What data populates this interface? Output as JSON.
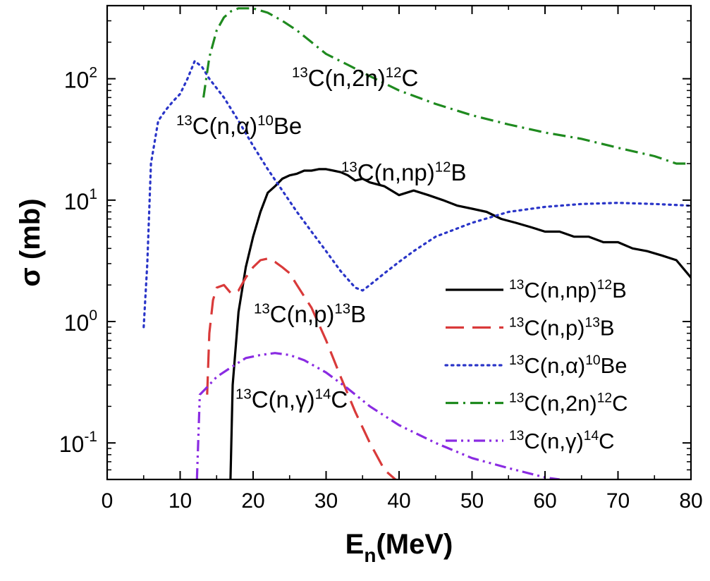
{
  "chart_data": {
    "type": "line",
    "title": "",
    "xlabel": "E",
    "xlabel_subscript": "n",
    "xlabel_unit": "(MeV)",
    "ylabel": "σ (mb)",
    "xlim": [
      0,
      80
    ],
    "ylim": [
      0.05,
      400
    ],
    "yscale": "log",
    "xticks": [
      "0",
      "10",
      "20",
      "30",
      "40",
      "50",
      "60",
      "70",
      "80"
    ],
    "yticks": [
      {
        "value": 0.1,
        "base": "10",
        "exp": "-1"
      },
      {
        "value": 1,
        "base": "10",
        "exp": "0"
      },
      {
        "value": 10,
        "base": "10",
        "exp": "1"
      },
      {
        "value": 100,
        "base": "10",
        "exp": "2"
      }
    ],
    "grid": false,
    "legend_position": "bottom-right",
    "series": [
      {
        "key": "np",
        "name": {
          "pre": "13",
          "mid": "C(n,np)",
          "post_sup": "12",
          "post": "B"
        },
        "color": "#000000",
        "dash": "solid",
        "x": [
          16.9,
          17.2,
          18,
          19,
          20,
          21,
          22,
          23,
          24,
          25,
          26,
          27,
          28,
          29,
          30,
          31,
          32,
          33,
          34,
          35,
          36,
          38,
          40,
          42,
          44,
          46,
          48,
          50,
          52,
          54,
          56,
          58,
          60,
          62,
          64,
          66,
          68,
          70,
          72,
          74,
          76,
          78,
          80
        ],
        "y": [
          0.05,
          0.3,
          1.2,
          2.8,
          5,
          8,
          11.5,
          13,
          15,
          16,
          16.5,
          17.5,
          17.5,
          18,
          18,
          17.5,
          17,
          16,
          14.5,
          15,
          14,
          13,
          11,
          12,
          11,
          10,
          9,
          8.5,
          8,
          7,
          6.5,
          6,
          5.5,
          5.5,
          5,
          5,
          4.5,
          4.5,
          4,
          3.8,
          3.5,
          3.2,
          2.3
        ]
      },
      {
        "key": "p",
        "name": {
          "pre": "13",
          "mid": "C(n,p)",
          "post_sup": "13",
          "post": "B"
        },
        "color": "#d93a3a",
        "dash": "dashed",
        "x": [
          13.7,
          14,
          14.5,
          15,
          16,
          17,
          18,
          19,
          20,
          21,
          22,
          23,
          24,
          25,
          26,
          28,
          30,
          32,
          34,
          36,
          38,
          39.5
        ],
        "y": [
          0.25,
          0.8,
          1.5,
          1.9,
          2.0,
          1.7,
          1.8,
          2.3,
          2.8,
          3.2,
          3.3,
          3.1,
          2.8,
          2.5,
          2.0,
          1.3,
          0.7,
          0.35,
          0.18,
          0.1,
          0.06,
          0.05
        ]
      },
      {
        "key": "alpha",
        "name": {
          "pre": "13",
          "mid": "C(n,α)",
          "post_sup": "10",
          "post": "Be"
        },
        "color": "#2a35c8",
        "dash": "dotted",
        "x": [
          5,
          5.5,
          6,
          7,
          8,
          9,
          10,
          11,
          12,
          13,
          14,
          16,
          18,
          20,
          22,
          24,
          26,
          28,
          30,
          32,
          34,
          35,
          36,
          38,
          40,
          42,
          45,
          50,
          55,
          60,
          65,
          70,
          75,
          80
        ],
        "y": [
          0.9,
          3,
          20,
          45,
          55,
          65,
          75,
          100,
          140,
          125,
          100,
          70,
          45,
          28,
          18,
          12,
          8,
          5.5,
          3.8,
          2.6,
          1.9,
          1.8,
          2.0,
          2.5,
          3.1,
          3.8,
          5,
          6.5,
          8,
          8.8,
          9.3,
          9.5,
          9.3,
          9.0
        ]
      },
      {
        "key": "2n",
        "name": {
          "pre": "13",
          "mid": "C(n,2n)",
          "post_sup": "12",
          "post": "C"
        },
        "color": "#1f8a1f",
        "dash": "dashdot",
        "x": [
          13.2,
          14,
          15,
          16,
          17,
          18,
          20,
          22,
          24,
          26,
          28,
          30,
          33,
          36,
          40,
          45,
          50,
          55,
          60,
          65,
          70,
          75,
          78,
          80
        ],
        "y": [
          70,
          150,
          250,
          320,
          360,
          380,
          380,
          350,
          300,
          250,
          200,
          160,
          130,
          105,
          80,
          62,
          50,
          42,
          36,
          32,
          27,
          23,
          20,
          20
        ]
      },
      {
        "key": "gamma",
        "name": {
          "pre": "13",
          "mid": "C(n,γ)",
          "post_sup": "14",
          "post": "C"
        },
        "color": "#8a2be2",
        "dash": "dashdotdot",
        "x": [
          12.3,
          12.7,
          13.5,
          15,
          17,
          19,
          21,
          23,
          25,
          27,
          30,
          33,
          36,
          40,
          45,
          50,
          55,
          60,
          62
        ],
        "y": [
          0.05,
          0.25,
          0.28,
          0.35,
          0.42,
          0.5,
          0.53,
          0.55,
          0.53,
          0.48,
          0.38,
          0.28,
          0.2,
          0.14,
          0.1,
          0.075,
          0.062,
          0.052,
          0.05
        ]
      }
    ],
    "annotations": [
      {
        "key": "2n",
        "pre": "13",
        "mid": "C(n,2n)",
        "post_sup": "12",
        "post": "C"
      },
      {
        "key": "alpha",
        "pre": "13",
        "mid": "C(n,α)",
        "post_sup": "10",
        "post": "Be"
      },
      {
        "key": "np",
        "pre": "13",
        "mid": "C(n,np)",
        "post_sup": "12",
        "post": "B"
      },
      {
        "key": "p",
        "pre": "13",
        "mid": "C(n,p)",
        "post_sup": "13",
        "post": "B"
      },
      {
        "key": "gamma",
        "pre": "13",
        "mid": "C(n,γ)",
        "post_sup": "14",
        "post": "C"
      }
    ]
  }
}
